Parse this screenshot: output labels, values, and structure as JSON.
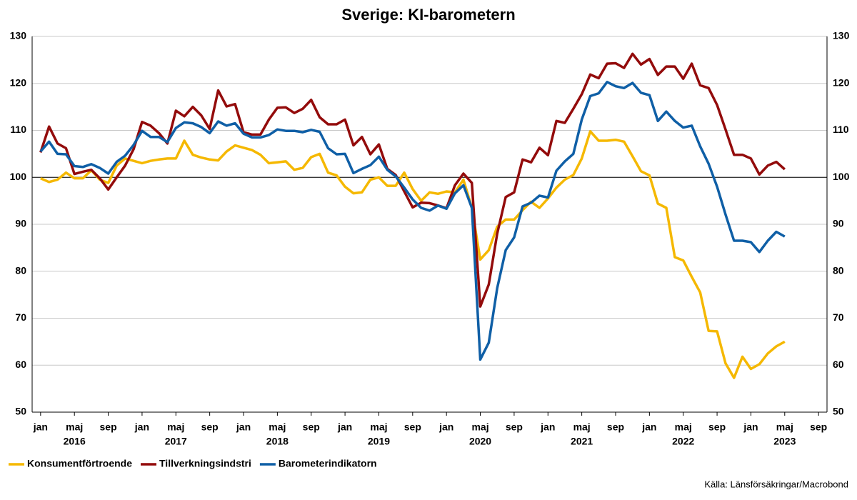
{
  "chart_data": {
    "type": "line",
    "title": "Sverige: KI-barometern",
    "source": "Källa: Länsförsäkringar/Macrobond",
    "x": [
      "2016-01",
      "2016-02",
      "2016-03",
      "2016-04",
      "2016-05",
      "2016-06",
      "2016-07",
      "2016-08",
      "2016-09",
      "2016-10",
      "2016-11",
      "2016-12",
      "2017-01",
      "2017-02",
      "2017-03",
      "2017-04",
      "2017-05",
      "2017-06",
      "2017-07",
      "2017-08",
      "2017-09",
      "2017-10",
      "2017-11",
      "2017-12",
      "2018-01",
      "2018-02",
      "2018-03",
      "2018-04",
      "2018-05",
      "2018-06",
      "2018-07",
      "2018-08",
      "2018-09",
      "2018-10",
      "2018-11",
      "2018-12",
      "2019-01",
      "2019-02",
      "2019-03",
      "2019-04",
      "2019-05",
      "2019-06",
      "2019-07",
      "2019-08",
      "2019-09",
      "2019-10",
      "2019-11",
      "2019-12",
      "2020-01",
      "2020-02",
      "2020-03",
      "2020-04",
      "2020-05",
      "2020-06",
      "2020-07",
      "2020-08",
      "2020-09",
      "2020-10",
      "2020-11",
      "2020-12",
      "2021-01",
      "2021-02",
      "2021-03",
      "2021-04",
      "2021-05",
      "2021-06",
      "2021-07",
      "2021-08",
      "2021-09",
      "2021-10",
      "2021-11",
      "2021-12",
      "2022-01",
      "2022-02",
      "2022-03",
      "2022-04",
      "2022-05",
      "2022-06",
      "2022-07",
      "2022-08",
      "2022-09",
      "2022-10",
      "2022-11",
      "2022-12",
      "2023-01",
      "2023-02",
      "2023-03",
      "2023-04",
      "2023-05"
    ],
    "series": [
      {
        "name": "Konsumentförtroende",
        "color": "#f5b800",
        "values": [
          99.8,
          99,
          99.5,
          101,
          99.8,
          99.8,
          101.5,
          99.5,
          98.8,
          102.5,
          104,
          103.5,
          103,
          103.5,
          103.8,
          104,
          104,
          107.8,
          104.8,
          104.2,
          103.8,
          103.6,
          105.5,
          106.8,
          106.3,
          105.8,
          104.8,
          103,
          103.2,
          103.4,
          101.6,
          102,
          104.3,
          105,
          101,
          100.4,
          98,
          96.6,
          96.8,
          99.5,
          100,
          98.2,
          98.2,
          101,
          97.5,
          95,
          96.8,
          96.5,
          97,
          96.8,
          99.5,
          93.5,
          82.5,
          84.5,
          89.5,
          91,
          91,
          93,
          94.8,
          93.5,
          95.5,
          97.8,
          99.5,
          100.5,
          104,
          109.8,
          107.8,
          107.8,
          108,
          107.6,
          104.5,
          101.3,
          100.4,
          94.4,
          93.5,
          83,
          82.3,
          78.8,
          75.5,
          67.3,
          67.2,
          60.4,
          57.3,
          61.8,
          59.2,
          60.2,
          62.5,
          64,
          65
        ]
      },
      {
        "name": "Tillverkningsindstri",
        "color": "#930b0b",
        "values": [
          105.3,
          110.8,
          107.2,
          106.2,
          100.7,
          101.2,
          101.6,
          99.8,
          97.4,
          100,
          102.5,
          106,
          111.8,
          111,
          109.4,
          107.2,
          114.2,
          113,
          115,
          113.2,
          110.3,
          118.5,
          115.1,
          115.6,
          109.6,
          109.1,
          109.1,
          112.3,
          114.8,
          114.9,
          113.7,
          114.6,
          116.5,
          112.8,
          111.3,
          111.3,
          112.3,
          106.8,
          108.6,
          104.9,
          107,
          101.8,
          100.5,
          97,
          93.6,
          94.6,
          94.5,
          94,
          93.4,
          98.3,
          100.8,
          98.8,
          72.5,
          77.2,
          88,
          95.8,
          96.8,
          103.8,
          103.2,
          106.3,
          104.7,
          112,
          111.6,
          114.6,
          117.7,
          121.9,
          121.1,
          124.2,
          124.3,
          123.3,
          126.3,
          124,
          125.2,
          121.8,
          123.6,
          123.6,
          121,
          124.2,
          119.6,
          119,
          115.4,
          110.2,
          104.8,
          104.8,
          104,
          100.6,
          102.5,
          103.3,
          101.7
        ]
      },
      {
        "name": "Barometerindikatorn",
        "color": "#0f5fa6",
        "values": [
          105.5,
          107.6,
          105,
          104.9,
          102.4,
          102.2,
          102.8,
          102,
          100.8,
          103.3,
          104.6,
          106.9,
          109.9,
          108.6,
          108.6,
          107.5,
          110.5,
          111.7,
          111.5,
          110.7,
          109.4,
          111.9,
          111,
          111.5,
          109.3,
          108.5,
          108.5,
          109,
          110.2,
          109.9,
          109.9,
          109.6,
          110.1,
          109.7,
          106.2,
          104.9,
          105,
          100.9,
          101.8,
          102.6,
          104.4,
          101.6,
          100.2,
          97.8,
          95.3,
          93.5,
          92.9,
          94,
          93.3,
          96.6,
          98.3,
          93.5,
          61.2,
          64.8,
          76.4,
          84.5,
          87.2,
          93.8,
          94.6,
          96.1,
          95.7,
          101.4,
          103.4,
          105,
          112.3,
          117.3,
          117.9,
          120.3,
          119.4,
          119,
          120.1,
          118,
          117.5,
          112,
          114,
          112,
          110.6,
          111,
          106.6,
          102.9,
          98,
          92.1,
          86.5,
          86.5,
          86.2,
          84.1,
          86.5,
          88.4,
          87.4
        ]
      }
    ],
    "xlim": [
      "2015-12",
      "2023-10"
    ],
    "xticks": [
      {
        "value": "2016-01",
        "label": "jan"
      },
      {
        "value": "2016-05",
        "label": "maj"
      },
      {
        "value": "2016-09",
        "label": "sep"
      },
      {
        "value": "2017-01",
        "label": "jan"
      },
      {
        "value": "2017-05",
        "label": "maj"
      },
      {
        "value": "2017-09",
        "label": "sep"
      },
      {
        "value": "2018-01",
        "label": "jan"
      },
      {
        "value": "2018-05",
        "label": "maj"
      },
      {
        "value": "2018-09",
        "label": "sep"
      },
      {
        "value": "2019-01",
        "label": "jan"
      },
      {
        "value": "2019-05",
        "label": "maj"
      },
      {
        "value": "2019-09",
        "label": "sep"
      },
      {
        "value": "2020-01",
        "label": "jan"
      },
      {
        "value": "2020-05",
        "label": "maj"
      },
      {
        "value": "2020-09",
        "label": "sep"
      },
      {
        "value": "2021-01",
        "label": "jan"
      },
      {
        "value": "2021-05",
        "label": "maj"
      },
      {
        "value": "2021-09",
        "label": "sep"
      },
      {
        "value": "2022-01",
        "label": "jan"
      },
      {
        "value": "2022-05",
        "label": "maj"
      },
      {
        "value": "2022-09",
        "label": "sep"
      },
      {
        "value": "2023-01",
        "label": "jan"
      },
      {
        "value": "2023-05",
        "label": "maj"
      },
      {
        "value": "2023-09",
        "label": "sep"
      }
    ],
    "year_labels": [
      {
        "value": "2016-05",
        "label": "2016"
      },
      {
        "value": "2017-05",
        "label": "2017"
      },
      {
        "value": "2018-05",
        "label": "2018"
      },
      {
        "value": "2019-05",
        "label": "2019"
      },
      {
        "value": "2020-05",
        "label": "2020"
      },
      {
        "value": "2021-05",
        "label": "2021"
      },
      {
        "value": "2022-05",
        "label": "2022"
      },
      {
        "value": "2023-05",
        "label": "2023"
      }
    ],
    "ylim": [
      50,
      130
    ],
    "yticks": [
      50,
      60,
      70,
      80,
      90,
      100,
      110,
      120,
      130
    ],
    "reference_line": 100,
    "grid": true,
    "mirror_y_axis": true,
    "legend": "bottom-left"
  }
}
